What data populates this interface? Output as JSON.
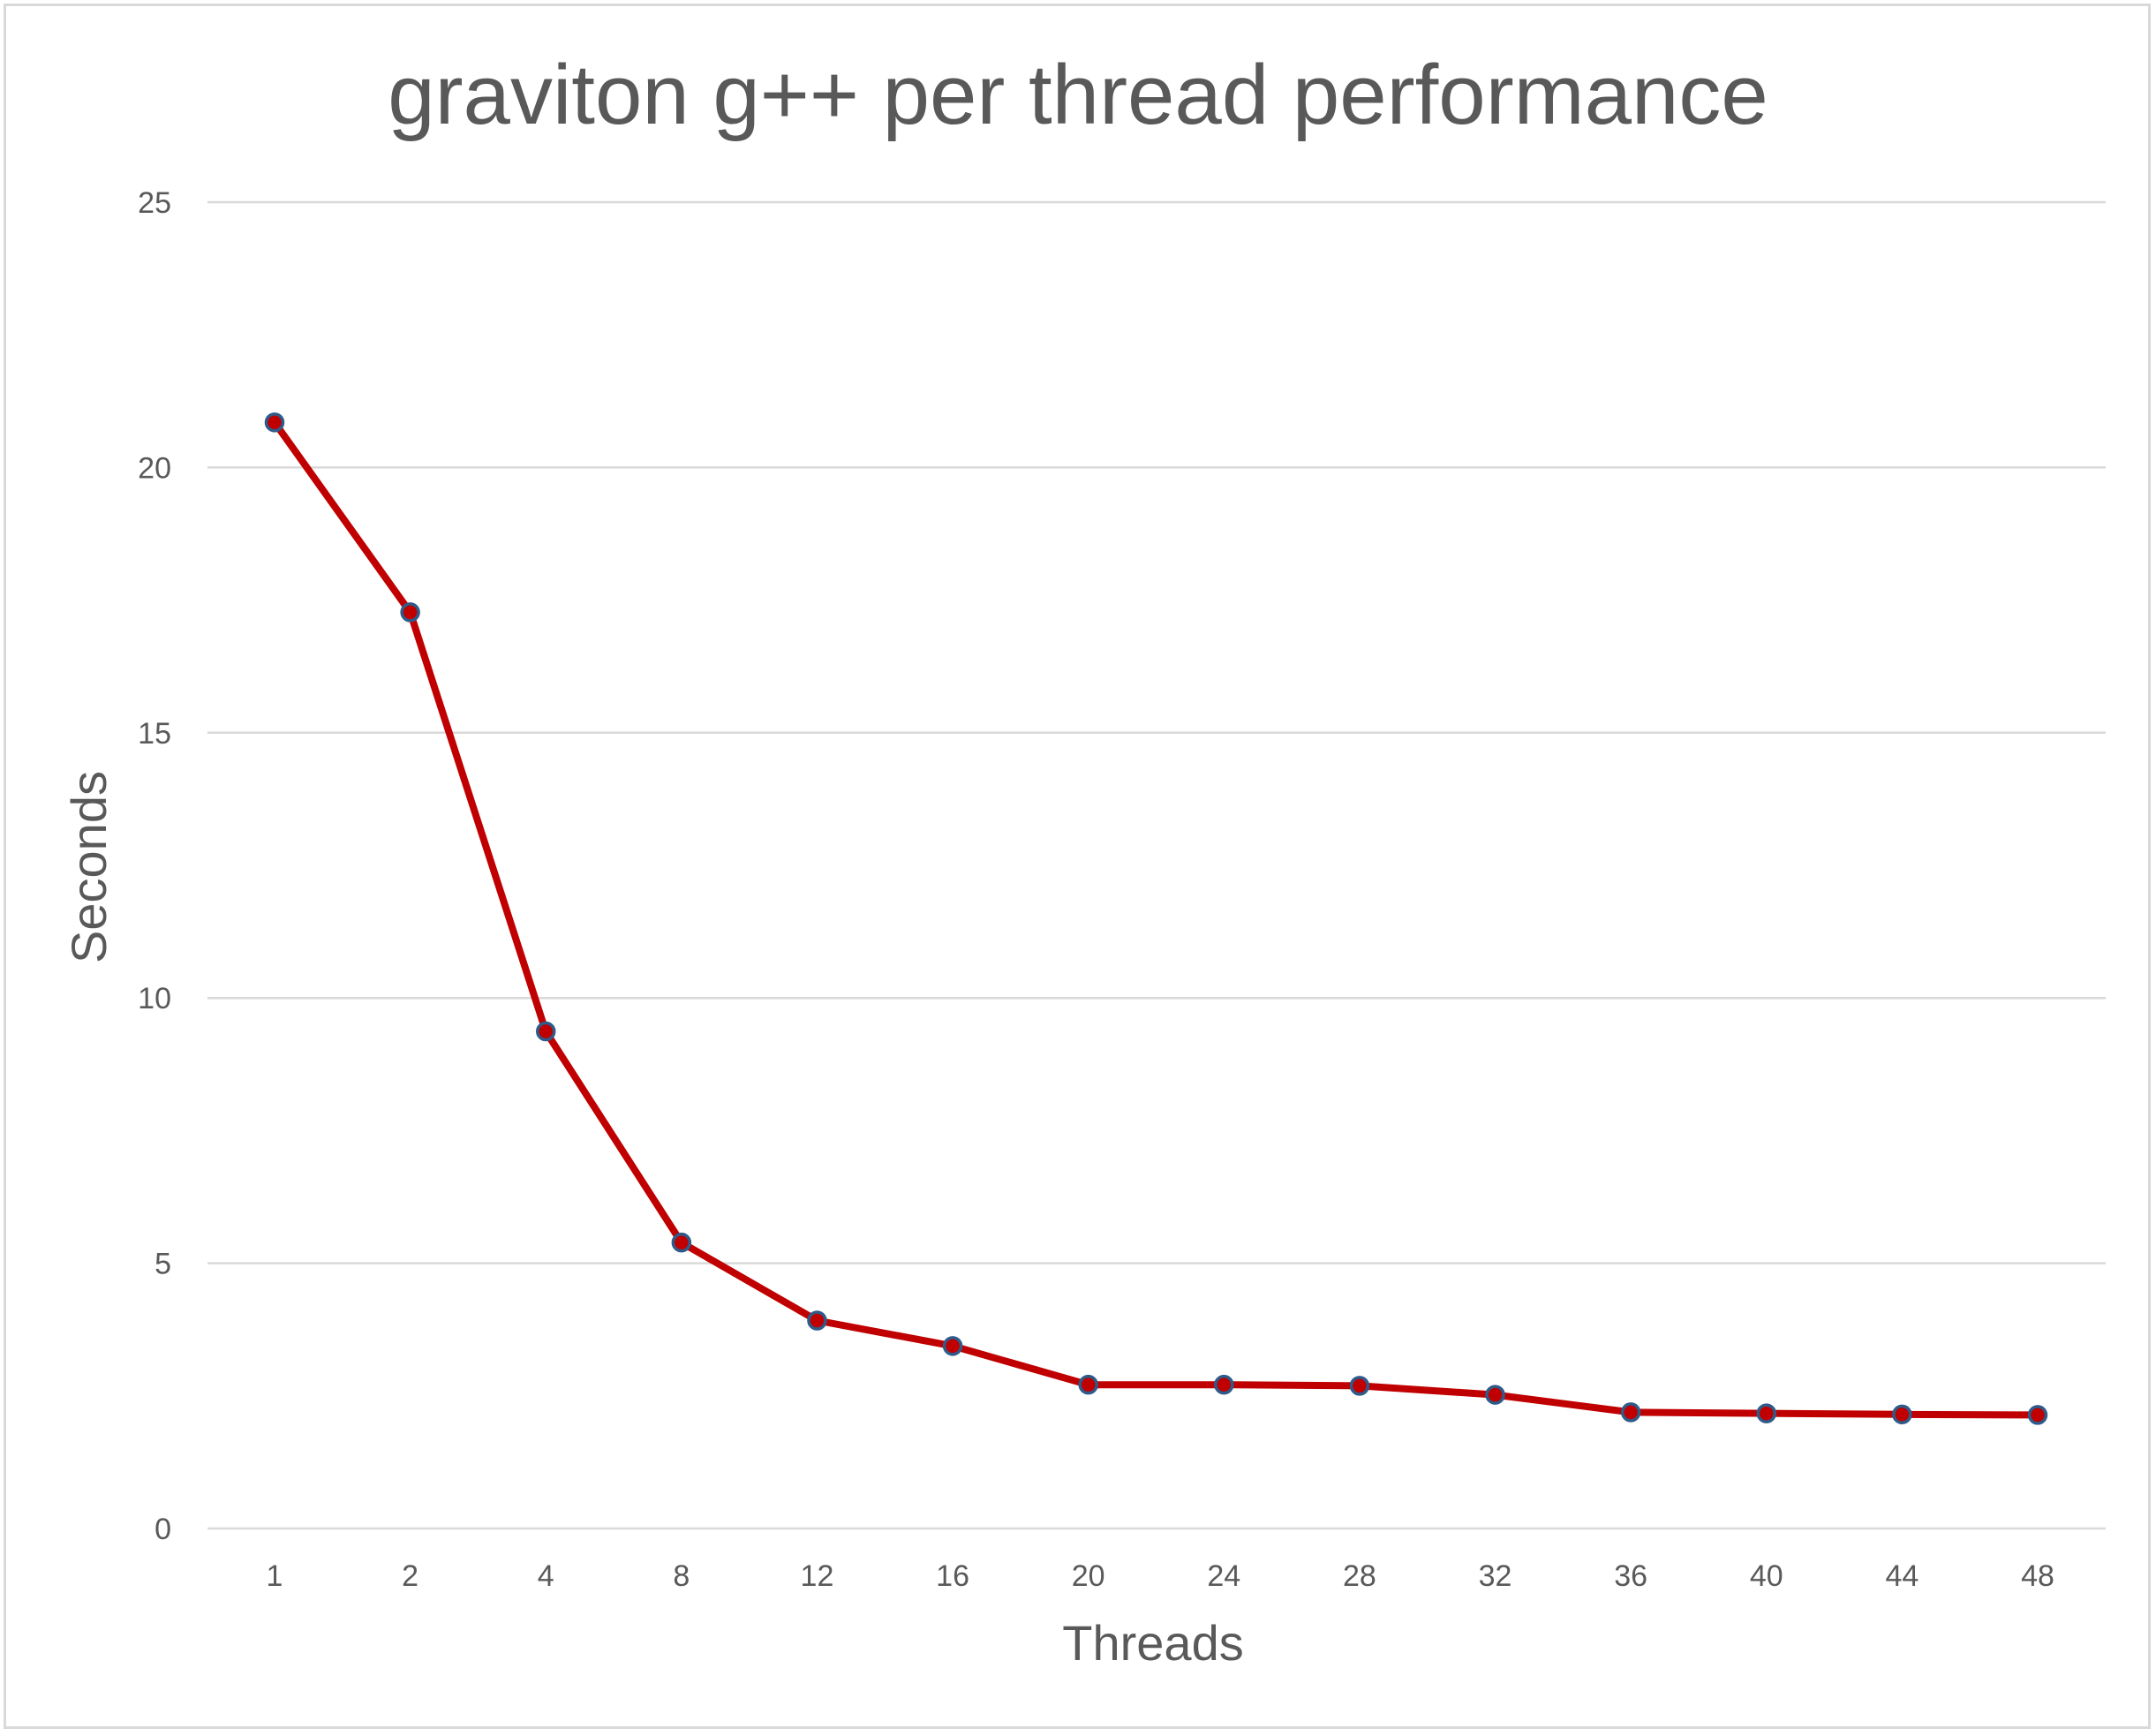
{
  "chart_data": {
    "type": "line",
    "title": "graviton g++ per thread performance",
    "xlabel": "Threads",
    "ylabel": "Seconds",
    "categories": [
      "1",
      "2",
      "4",
      "8",
      "12",
      "16",
      "20",
      "24",
      "28",
      "32",
      "36",
      "40",
      "44",
      "48"
    ],
    "series": [
      {
        "values": [
          20.85,
          17.27,
          9.37,
          5.39,
          3.92,
          3.44,
          2.71,
          2.71,
          2.69,
          2.52,
          2.19,
          2.17,
          2.15,
          2.14
        ]
      }
    ],
    "ylim": [
      0,
      25
    ],
    "yticks": [
      "0",
      "5",
      "10",
      "15",
      "20",
      "25"
    ],
    "grid": true,
    "legend": "none",
    "colors": {
      "line": "#c00000",
      "marker_fill": "#c00000",
      "marker_edge": "#2e5b8a",
      "gridline": "#d9d9d9",
      "text": "#595959",
      "frame": "#d9d9d9"
    }
  }
}
